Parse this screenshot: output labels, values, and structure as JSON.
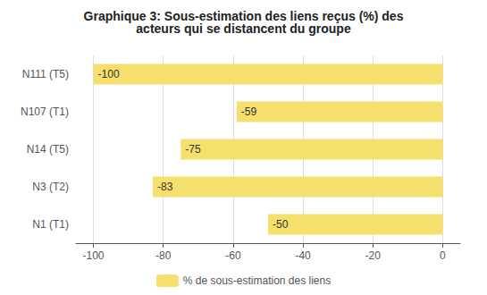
{
  "chart_data": {
    "type": "bar",
    "orientation": "horizontal",
    "title": "Graphique 3: Sous-estimation des liens reçus (%) des\nacteurs qui se distancent du groupe",
    "categories": [
      "N111 (T5)",
      "N107 (T1)",
      "N14 (T5)",
      "N3 (T2)",
      "N1 (T1)"
    ],
    "series": [
      {
        "name": "% de sous-estimation des liens",
        "color": "#F5E06E",
        "values": [
          -100,
          -59,
          -75,
          -83,
          -50
        ]
      }
    ],
    "xlim": [
      -105,
      5
    ],
    "xticks": [
      -100,
      -80,
      -60,
      -40,
      -20,
      0
    ],
    "grid": true,
    "legend": "bottom",
    "data_labels": true
  }
}
